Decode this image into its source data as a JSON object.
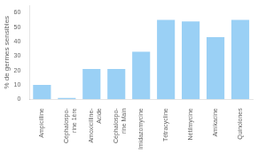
{
  "chart_data": {
    "type": "bar",
    "categories": [
      "Ampicilline",
      "Céphalospo-\nrine 1ère",
      "Amoxicilline-\nAcide",
      "Céphalospo-\nrine Main",
      "Imidazomycine",
      "Tétracycline",
      "Nétilmycine",
      "Amikacine",
      "Quinolones"
    ],
    "values": [
      10,
      1,
      21,
      21,
      33,
      55,
      54,
      43,
      55
    ],
    "ylabel": "% de germes sensibles",
    "ylim": [
      0,
      65
    ],
    "yticks": [
      0,
      10,
      20,
      30,
      40,
      50,
      60
    ],
    "grid": false
  }
}
